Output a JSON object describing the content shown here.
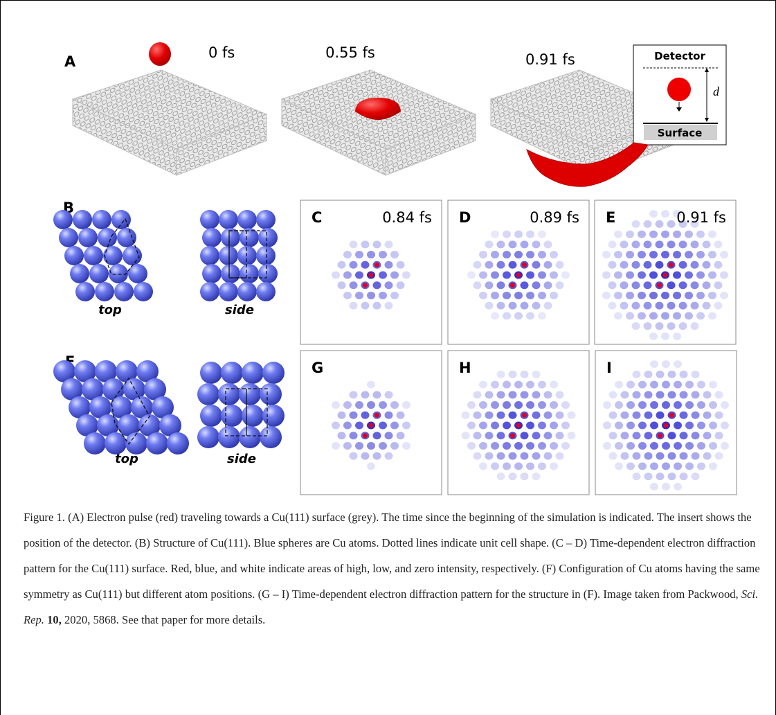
{
  "panel_a": {
    "label": "A",
    "times": [
      "0 fs",
      "0.55 fs",
      "0.91 fs"
    ],
    "inset": {
      "top": "Detector",
      "distance": "d",
      "bottom": "Surface"
    }
  },
  "panel_b": {
    "label": "B",
    "views": [
      "top",
      "side"
    ]
  },
  "panel_f": {
    "label": "F",
    "views": [
      "top",
      "side"
    ]
  },
  "patterns": [
    {
      "label": "C",
      "time": "0.84 fs"
    },
    {
      "label": "D",
      "time": "0.89 fs"
    },
    {
      "label": "E",
      "time": "0.91 fs"
    },
    {
      "label": "G"
    },
    {
      "label": "H"
    },
    {
      "label": "I"
    }
  ],
  "caption": {
    "text": "Figure 1. (A) Electron pulse (red) traveling towards a Cu(111) surface (grey). The time since the beginning of the simulation is indicated. The insert shows the position of the detector. (B) Structure of Cu(111). Blue spheres are Cu atoms. Dotted lines indicate unit cell shape. (C – D) Time-dependent electron diffraction pattern for the Cu(111) surface. Red, blue, and white indicate areas of high, low, and zero intensity, respectively. (F) Configuration of Cu atoms having the same symmetry as Cu(111) but different atom positions. (G – I) Time-dependent electron diffraction pattern for the structure in (F). Image taken from Packwood, ",
    "journal": "Sci. Rep.",
    "volume": "10,",
    "rest": " 2020, 5868. See that paper for more details."
  }
}
